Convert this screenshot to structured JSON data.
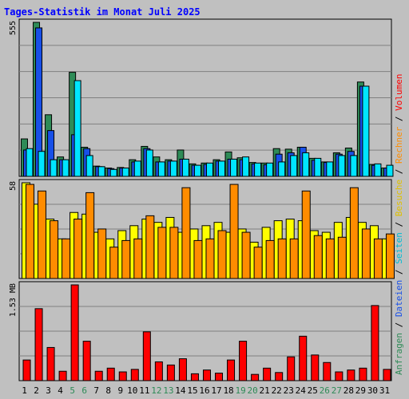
{
  "chart_data": {
    "type": "bar",
    "title": "Tages-Statistik im Monat Juli 2025",
    "categories": [
      "1",
      "2",
      "3",
      "4",
      "5",
      "6",
      "7",
      "8",
      "9",
      "10",
      "11",
      "12",
      "13",
      "14",
      "15",
      "16",
      "17",
      "18",
      "19",
      "20",
      "21",
      "22",
      "23",
      "24",
      "25",
      "26",
      "27",
      "28",
      "29",
      "30",
      "31"
    ],
    "weekend_days": [
      "5",
      "6",
      "12",
      "13",
      "19",
      "20",
      "26",
      "27"
    ],
    "panels": [
      {
        "id": "top",
        "ymax_label": "555",
        "ymax": 555,
        "series": [
          {
            "name": "Anfragen",
            "color": "#2e8b57",
            "values": [
              135,
              555,
              222,
              70,
              375,
              105,
              37,
              30,
              32,
              60,
              108,
              70,
              60,
              95,
              45,
              48,
              60,
              88,
              67,
              50,
              48,
              100,
              98,
              105,
              65,
              52,
              85,
              102,
              340,
              43,
              30
            ]
          },
          {
            "name": "Dateien",
            "color": "#1850e8",
            "values": [
              95,
              535,
              165,
              60,
              150,
              100,
              35,
              28,
              30,
              52,
              100,
              52,
              55,
              62,
              40,
              43,
              55,
              62,
              60,
              45,
              42,
              80,
              85,
              105,
              58,
              50,
              80,
              90,
              325,
              40,
              30
            ]
          },
          {
            "name": "Seiten",
            "color": "#00e5ff",
            "values": [
              100,
              90,
              60,
              60,
              345,
              75,
              35,
              25,
              30,
              55,
              95,
              52,
              55,
              62,
              40,
              48,
              55,
              62,
              70,
              48,
              48,
              52,
              75,
              85,
              65,
              52,
              75,
              75,
              325,
              45,
              40
            ]
          }
        ]
      },
      {
        "id": "middle",
        "ymax_label": "58",
        "ymax": 58,
        "series": [
          {
            "name": "Besuche",
            "color": "#ffff00",
            "values": [
              58,
              45,
              36,
              24,
              40,
              39,
              28,
              24,
              29,
              32,
              36,
              34,
              37,
              28,
              30,
              32,
              34,
              28,
              30,
              22,
              31,
              35,
              36,
              35,
              29,
              28,
              34,
              37,
              34,
              32,
              24
            ]
          },
          {
            "name": "Rechner",
            "color": "#ff8c00",
            "values": [
              57,
              53,
              35,
              24,
              36,
              52,
              30,
              19,
              23,
              24,
              38,
              31,
              31,
              55,
              23,
              24,
              29,
              57,
              28,
              19,
              23,
              24,
              24,
              53,
              26,
              24,
              25,
              55,
              30,
              24,
              27
            ]
          }
        ]
      },
      {
        "id": "bottom",
        "ymax_label": "1.53 MB",
        "ymax": 1.53,
        "series": [
          {
            "name": "Volumen",
            "color": "#ff0000",
            "values": [
              0.33,
              1.15,
              0.53,
              0.15,
              1.53,
              0.63,
              0.15,
              0.2,
              0.14,
              0.18,
              0.78,
              0.3,
              0.25,
              0.35,
              0.11,
              0.17,
              0.12,
              0.33,
              0.63,
              0.1,
              0.2,
              0.13,
              0.38,
              0.71,
              0.41,
              0.29,
              0.14,
              0.17,
              0.2,
              1.2,
              0.18
            ]
          }
        ]
      }
    ],
    "side_legend": [
      {
        "text": "Anfragen",
        "color": "#2e8b57"
      },
      {
        "text": "/",
        "color": "#000000"
      },
      {
        "text": "Dateien",
        "color": "#1850e8"
      },
      {
        "text": "/",
        "color": "#000000"
      },
      {
        "text": "Seiten",
        "color": "#00bcd4"
      },
      {
        "text": "/",
        "color": "#000000"
      },
      {
        "text": "Besuche",
        "color": "#e0c000"
      },
      {
        "text": "/",
        "color": "#000000"
      },
      {
        "text": "Rechner",
        "color": "#ff8c00"
      },
      {
        "text": "/",
        "color": "#000000"
      },
      {
        "text": "Volumen",
        "color": "#ff0000"
      }
    ],
    "colors": {
      "background": "#c0c0c0",
      "title": "#0000ff",
      "gridline": "#808080",
      "weekend_label": "#2e8b57",
      "weekday_label": "#000000"
    }
  }
}
